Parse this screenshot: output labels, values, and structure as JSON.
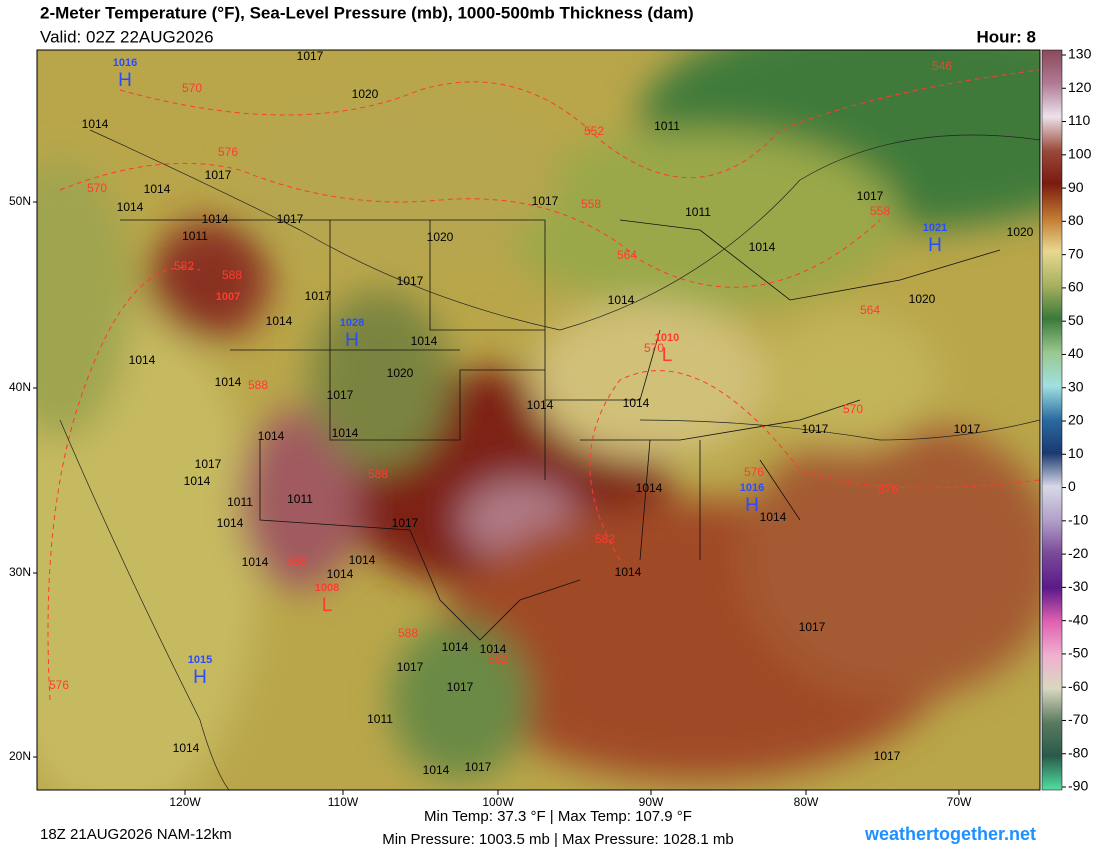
{
  "header": {
    "title": "2-Meter Temperature (°F), Sea-Level Pressure (mb), 1000-500mb Thickness (dam)",
    "valid": "Valid: 02Z 22AUG2026",
    "hour": "Hour: 8"
  },
  "colorbar": {
    "ticks": [
      130,
      120,
      110,
      100,
      90,
      80,
      70,
      60,
      50,
      40,
      30,
      20,
      10,
      0,
      -10,
      -20,
      -30,
      -40,
      -50,
      -60,
      -70,
      -80,
      -90
    ]
  },
  "map": {
    "lat_labels": [
      "50N",
      "40N",
      "30N",
      "20N"
    ],
    "lon_labels": [
      "120W",
      "110W",
      "100W",
      "90W",
      "80W",
      "70W"
    ],
    "centers": [
      {
        "type": "H",
        "pressure": "1016"
      },
      {
        "type": "H",
        "pressure": "1028"
      },
      {
        "type": "H",
        "pressure": "1021"
      },
      {
        "type": "L",
        "pressure": "1010"
      },
      {
        "type": "H",
        "pressure": "1016"
      },
      {
        "type": "L",
        "pressure": "1008"
      },
      {
        "type": "H",
        "pressure": "1015"
      }
    ],
    "red_pressure_labels": [
      "1007"
    ],
    "isobar_labels": [
      "1017",
      "1020",
      "1014",
      "1011",
      "1014",
      "1017",
      "1014",
      "1014",
      "1017",
      "1017",
      "1011",
      "1017",
      "1014",
      "1020",
      "1020",
      "1011",
      "1017",
      "1017",
      "1014",
      "1014",
      "1020",
      "1014",
      "1014",
      "1020",
      "1014",
      "1017",
      "1014",
      "1014",
      "1014",
      "1014",
      "1017",
      "1017",
      "1017",
      "1014",
      "1011",
      "1011",
      "1014",
      "1017",
      "1014",
      "1014",
      "1014",
      "1014",
      "1014",
      "1014",
      "1014",
      "1014",
      "1017",
      "1017",
      "1017",
      "1011",
      "1014",
      "1014",
      "1017",
      "1017"
    ],
    "thickness_labels": [
      "570",
      "552",
      "546",
      "576",
      "570",
      "558",
      "558",
      "582",
      "588",
      "564",
      "564",
      "570",
      "588",
      "570",
      "588",
      "576",
      "576",
      "582",
      "588",
      "588",
      "582",
      "576"
    ]
  },
  "footer": {
    "run": "18Z 21AUG2026 NAM-12km",
    "temp": "Min Temp:  37.3 °F | Max Temp: 107.9 °F",
    "pressure": "Min Pressure: 1003.5 mb | Max Pressure: 1028.1 mb",
    "site": "weathertogether.net"
  }
}
